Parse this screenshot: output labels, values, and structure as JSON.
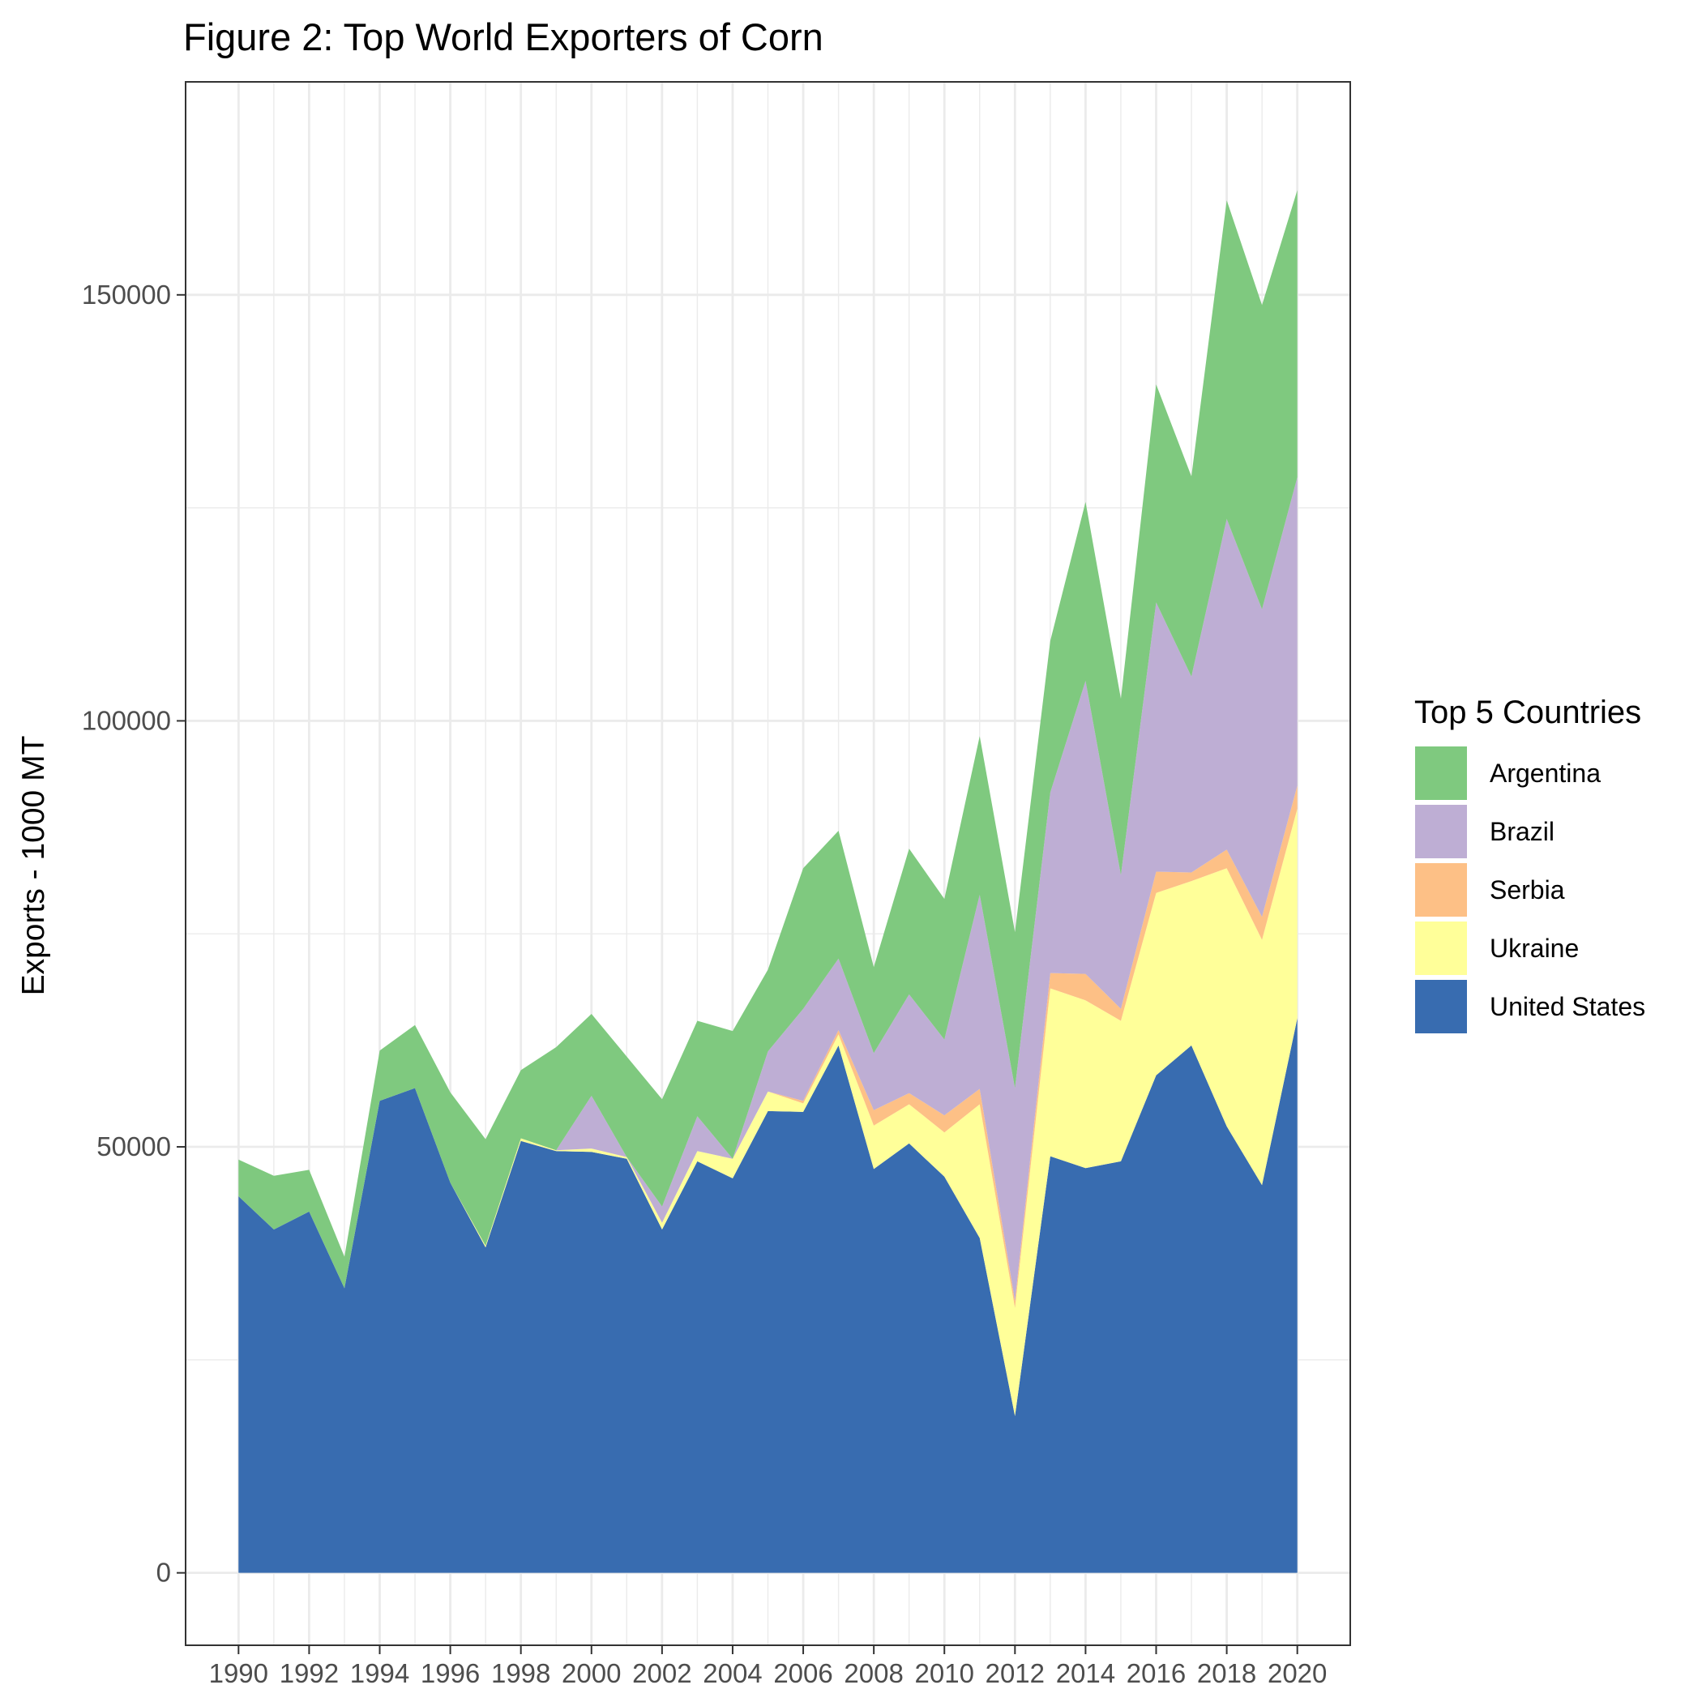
{
  "chart_data": {
    "type": "area",
    "stacked": true,
    "title": "Figure 2: Top World Exporters of Corn",
    "xlabel": "",
    "ylabel": "Exports - 1000 MT",
    "x": [
      1990,
      1991,
      1992,
      1993,
      1994,
      1995,
      1996,
      1997,
      1998,
      1999,
      2000,
      2001,
      2002,
      2003,
      2004,
      2005,
      2006,
      2007,
      2008,
      2009,
      2010,
      2011,
      2012,
      2013,
      2014,
      2015,
      2016,
      2017,
      2018,
      2019,
      2020
    ],
    "x_ticks": [
      "1990",
      "1992",
      "1994",
      "1996",
      "1998",
      "2000",
      "2002",
      "2004",
      "2006",
      "2008",
      "2010",
      "2012",
      "2014",
      "2016",
      "2018",
      "2020"
    ],
    "y_ticks": [
      "0",
      "50000",
      "100000",
      "150000"
    ],
    "xlim": [
      1988.5,
      2021.5
    ],
    "ylim": [
      -8500,
      175000
    ],
    "grid": true,
    "legend": {
      "title": "Top 5 Countries",
      "position": "right"
    },
    "series": [
      {
        "name": "United States",
        "color": "#386cb0",
        "values": [
          44200,
          40300,
          42400,
          33400,
          55400,
          56900,
          45800,
          38200,
          50700,
          49500,
          49400,
          48600,
          40300,
          48300,
          46300,
          54200,
          54100,
          61900,
          47400,
          50400,
          46500,
          39300,
          18400,
          48900,
          47500,
          48300,
          58400,
          61900,
          52400,
          45500,
          65100
        ]
      },
      {
        "name": "Ukraine",
        "color": "#ffff99",
        "values": [
          0,
          0,
          0,
          0,
          0,
          0,
          0,
          200,
          300,
          100,
          400,
          200,
          800,
          1200,
          2300,
          2300,
          1000,
          1300,
          5100,
          4600,
          5200,
          15700,
          12700,
          19700,
          19700,
          16500,
          21400,
          19300,
          30300,
          28800,
          24600
        ]
      },
      {
        "name": "Serbia",
        "color": "#fdc086",
        "values": [
          0,
          0,
          0,
          0,
          0,
          0,
          0,
          0,
          0,
          0,
          0,
          0,
          0,
          0,
          0,
          0,
          300,
          500,
          1800,
          1300,
          2000,
          1800,
          800,
          1800,
          3100,
          1400,
          2500,
          1000,
          2200,
          2700,
          2700
        ]
      },
      {
        "name": "Brazil",
        "color": "#beaed4",
        "values": [
          0,
          0,
          0,
          0,
          0,
          0,
          0,
          0,
          0,
          0,
          6200,
          0,
          1900,
          4100,
          0,
          4700,
          10800,
          8400,
          6700,
          11600,
          8900,
          22800,
          25000,
          21200,
          34400,
          15700,
          31600,
          23000,
          38800,
          36100,
          36200
        ]
      },
      {
        "name": "Argentina",
        "color": "#7fc97f",
        "values": [
          4300,
          6300,
          4900,
          3700,
          5900,
          7400,
          10600,
          12500,
          8000,
          12100,
          9600,
          11800,
          12600,
          11200,
          15000,
          9600,
          16500,
          15000,
          10100,
          17100,
          16500,
          18600,
          18300,
          17800,
          21000,
          20700,
          25600,
          23500,
          37400,
          35700,
          33700
        ]
      }
    ]
  }
}
